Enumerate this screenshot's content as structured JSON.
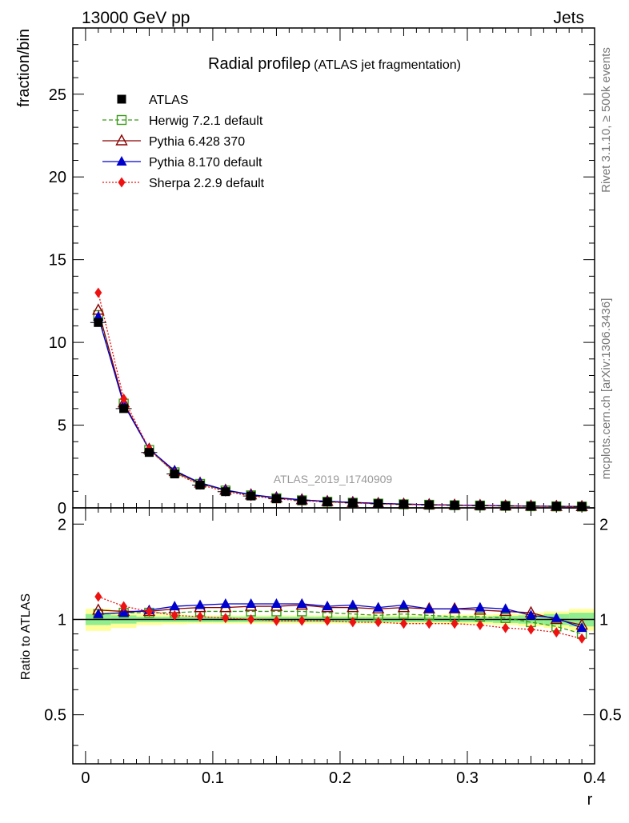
{
  "header": {
    "left": "13000 GeV pp",
    "right": "Jets"
  },
  "side_labels": {
    "top": "Rivet 3.1.10, ≥ 500k events",
    "bottom": "mcplots.cern.ch [arXiv:1306.3436]"
  },
  "watermark": "ATLAS_2019_I1740909",
  "colors": {
    "data": "#000000",
    "herwig": "#3a9a1a",
    "pythia6": "#8b0000",
    "pythia8": "#0000cc",
    "sherpa": "#ee1111",
    "band_inner": "#90ee90",
    "band_outer": "#ffff99"
  },
  "chart_data": [
    {
      "type": "line",
      "title": "Radial profileρ",
      "subtitle": "(ATLAS jet fragmentation)",
      "xlabel": "",
      "ylabel": "fraction/bin",
      "xlim": [
        -0.01,
        0.4
      ],
      "ylim": [
        0,
        29
      ],
      "yticks": [
        0,
        5,
        10,
        15,
        20,
        25
      ],
      "x": [
        0.01,
        0.03,
        0.05,
        0.07,
        0.09,
        0.11,
        0.13,
        0.15,
        0.17,
        0.19,
        0.21,
        0.23,
        0.25,
        0.27,
        0.29,
        0.31,
        0.33,
        0.35,
        0.37,
        0.39
      ],
      "series": [
        {
          "name": "ATLAS",
          "key": "data",
          "values": [
            11.2,
            6.0,
            3.35,
            2.05,
            1.38,
            0.98,
            0.72,
            0.55,
            0.44,
            0.36,
            0.3,
            0.25,
            0.21,
            0.18,
            0.16,
            0.14,
            0.12,
            0.105,
            0.095,
            0.085
          ]
        },
        {
          "name": "Herwig 7.2.1 default",
          "key": "herwig",
          "values": [
            11.65,
            6.3,
            3.5,
            2.15,
            1.45,
            1.05,
            0.76,
            0.58,
            0.46,
            0.37,
            0.31,
            0.26,
            0.22,
            0.19,
            0.16,
            0.14,
            0.12,
            0.1,
            0.09,
            0.077
          ]
        },
        {
          "name": "Pythia 6.428 370",
          "key": "pythia6",
          "values": [
            11.95,
            6.35,
            3.55,
            2.2,
            1.5,
            1.07,
            0.79,
            0.61,
            0.49,
            0.39,
            0.33,
            0.27,
            0.23,
            0.195,
            0.17,
            0.15,
            0.125,
            0.11,
            0.095,
            0.082
          ]
        },
        {
          "name": "Pythia 8.170 default",
          "key": "pythia8",
          "values": [
            11.55,
            6.25,
            3.55,
            2.25,
            1.52,
            1.08,
            0.8,
            0.62,
            0.49,
            0.39,
            0.33,
            0.27,
            0.23,
            0.195,
            0.17,
            0.15,
            0.123,
            0.107,
            0.096,
            0.08
          ]
        },
        {
          "name": "Sherpa 2.2.9 default",
          "key": "sherpa",
          "values": [
            13.0,
            6.6,
            3.55,
            2.1,
            1.4,
            0.99,
            0.72,
            0.545,
            0.435,
            0.355,
            0.295,
            0.245,
            0.205,
            0.175,
            0.155,
            0.135,
            0.113,
            0.098,
            0.087,
            0.074
          ]
        }
      ]
    },
    {
      "type": "line",
      "xlabel": "r",
      "ylabel": "Ratio to ATLAS",
      "xlim": [
        -0.01,
        0.4
      ],
      "ylim": [
        0.35,
        2.25
      ],
      "yticks": [
        0.5,
        1,
        2
      ],
      "ytick_labels": [
        "0.5",
        "1",
        "2"
      ],
      "xticks": [
        0,
        0.1,
        0.2,
        0.3,
        0.4
      ],
      "xtick_labels": [
        "0",
        "0.1",
        "0.2",
        "0.3",
        "0.4"
      ],
      "x": [
        0.01,
        0.03,
        0.05,
        0.07,
        0.09,
        0.11,
        0.13,
        0.15,
        0.17,
        0.19,
        0.21,
        0.23,
        0.25,
        0.27,
        0.29,
        0.31,
        0.33,
        0.35,
        0.37,
        0.39
      ],
      "band_inner": [
        0.04,
        0.03,
        0.02,
        0.02,
        0.02,
        0.02,
        0.02,
        0.02,
        0.02,
        0.02,
        0.02,
        0.02,
        0.02,
        0.02,
        0.02,
        0.02,
        0.025,
        0.03,
        0.04,
        0.05
      ],
      "band_outer": [
        0.08,
        0.06,
        0.04,
        0.035,
        0.03,
        0.03,
        0.03,
        0.03,
        0.03,
        0.03,
        0.03,
        0.03,
        0.03,
        0.03,
        0.035,
        0.035,
        0.04,
        0.05,
        0.06,
        0.08
      ],
      "series": [
        {
          "name": "Herwig 7.2.1 default",
          "key": "herwig",
          "values": [
            1.04,
            1.05,
            1.05,
            1.05,
            1.06,
            1.06,
            1.06,
            1.06,
            1.06,
            1.05,
            1.04,
            1.03,
            1.04,
            1.03,
            1.02,
            1.02,
            1.01,
            0.98,
            0.95,
            0.9
          ]
        },
        {
          "name": "Pythia 6.428 370",
          "key": "pythia6",
          "values": [
            1.07,
            1.06,
            1.06,
            1.08,
            1.09,
            1.09,
            1.1,
            1.1,
            1.11,
            1.09,
            1.09,
            1.08,
            1.09,
            1.08,
            1.08,
            1.07,
            1.06,
            1.05,
            1.0,
            0.96
          ]
        },
        {
          "name": "Pythia 8.170 default",
          "key": "pythia8",
          "values": [
            1.04,
            1.05,
            1.07,
            1.1,
            1.11,
            1.12,
            1.12,
            1.12,
            1.12,
            1.1,
            1.11,
            1.09,
            1.11,
            1.08,
            1.08,
            1.09,
            1.08,
            1.03,
            1.01,
            0.94
          ]
        },
        {
          "name": "Sherpa 2.2.9 default",
          "key": "sherpa",
          "values": [
            1.18,
            1.1,
            1.06,
            1.03,
            1.02,
            1.01,
            1.0,
            0.99,
            0.99,
            0.99,
            0.98,
            0.98,
            0.97,
            0.97,
            0.97,
            0.96,
            0.94,
            0.93,
            0.91,
            0.87
          ]
        }
      ]
    }
  ]
}
